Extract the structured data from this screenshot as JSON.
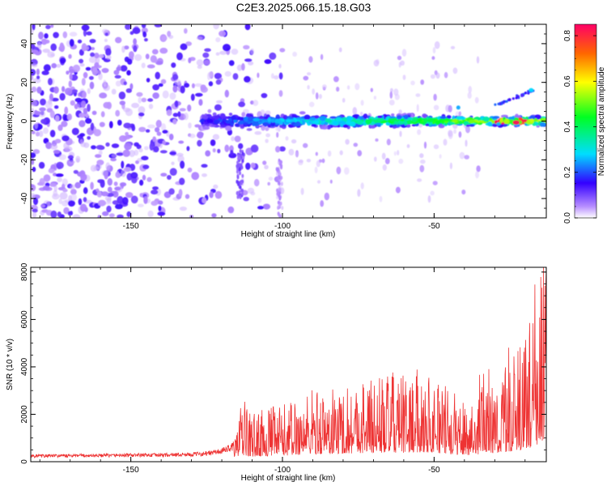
{
  "title": "C2E3.2025.066.15.18.G03",
  "chart_data": [
    {
      "type": "heatmap",
      "xlabel": "Height of straight line (km)",
      "ylabel": "Frequency (Hz)",
      "xlim": [
        -183,
        -13
      ],
      "ylim": [
        -50,
        50
      ],
      "xticks": [
        "-150",
        "-100",
        "-50"
      ],
      "xtick_values": [
        -150,
        -100,
        -50
      ],
      "yticks": [
        "-40",
        "-20",
        "0",
        "20",
        "40"
      ],
      "ytick_values": [
        -40,
        -20,
        0,
        20,
        40
      ],
      "colorbar": {
        "label": "Normalized spectral amplitude",
        "range": [
          0,
          0.85
        ],
        "ticks": [
          "0.0",
          "0.2",
          "0.4",
          "0.6",
          "0.8"
        ],
        "tick_values": [
          0,
          0.2,
          0.4,
          0.6,
          0.8
        ]
      },
      "main_band": {
        "x_start": -127,
        "x_end": -13,
        "frequency_hz": 0
      },
      "secondary_band": {
        "x_start": -30,
        "x_end": -17,
        "frequency_hz": 14
      },
      "noise_region": {
        "x_start": -183,
        "x_end": -100
      },
      "peak_amplitude_near_x": [
        -30,
        -20
      ]
    },
    {
      "type": "line",
      "xlabel": "Height of straight line (km)",
      "ylabel": "SNR (10 * v/v)",
      "xlim": [
        -183,
        -13
      ],
      "ylim": [
        0,
        8200
      ],
      "xticks": [
        "-150",
        "-100",
        "-50"
      ],
      "xtick_values": [
        -150,
        -100,
        -50
      ],
      "yticks": [
        "0",
        "2000",
        "4000",
        "6000",
        "8000"
      ],
      "ytick_values": [
        0,
        2000,
        4000,
        6000,
        8000
      ],
      "color": "#ee3333",
      "series": [
        {
          "x": [
            -183,
            -170,
            -160,
            -150,
            -140,
            -130,
            -125,
            -120,
            -115,
            -113,
            -110,
            -105,
            -100,
            -95,
            -90,
            -85,
            -80,
            -75,
            -70,
            -65,
            -60,
            -55,
            -50,
            -45,
            -40,
            -35,
            -30,
            -25,
            -20,
            -17,
            -15,
            -13
          ],
          "values": [
            230,
            240,
            250,
            260,
            270,
            290,
            330,
            420,
            700,
            1100,
            850,
            950,
            1000,
            1150,
            1300,
            1250,
            1350,
            1450,
            1500,
            1550,
            1500,
            1600,
            1550,
            1250,
            1100,
            1250,
            1450,
            1700,
            2100,
            2600,
            3200,
            4200
          ]
        }
      ]
    }
  ]
}
